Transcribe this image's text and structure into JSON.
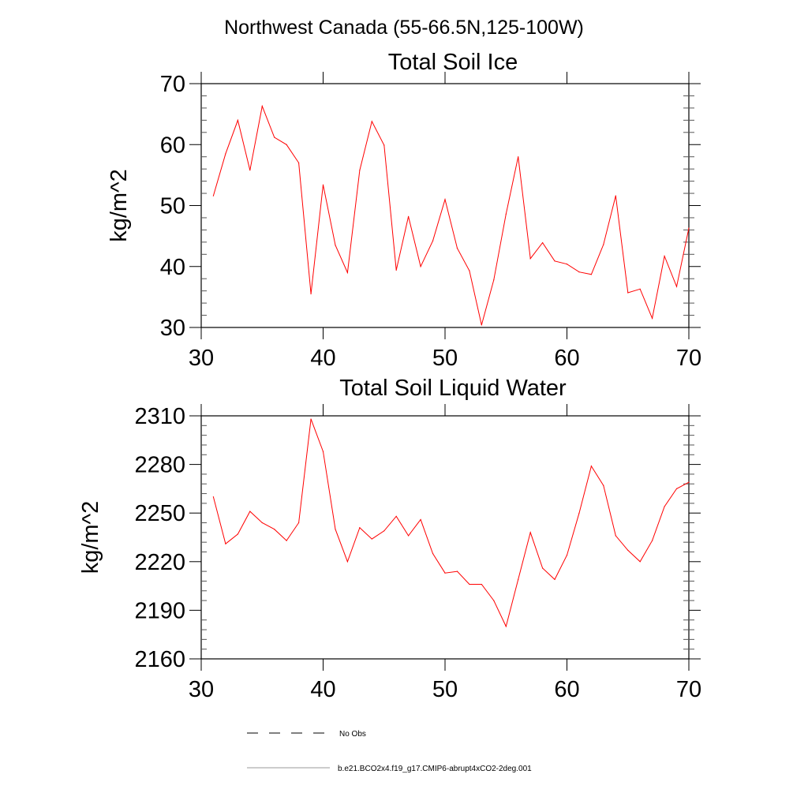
{
  "title": "Northwest Canada (55-66.5N,125-100W)",
  "legend": {
    "entries": [
      {
        "label": "No Obs",
        "style": "dashed",
        "color": "#000000"
      },
      {
        "label": "b.e21.BCO2x4.f19_g17.CMIP6-abrupt4xCO2-2deg.001",
        "style": "solid",
        "color": "#999999"
      }
    ]
  },
  "chart_data": [
    {
      "type": "line",
      "title": "Total Soil Ice",
      "xlabel": "",
      "ylabel": "kg/m^2",
      "xlim": [
        30,
        70
      ],
      "ylim": [
        30,
        70
      ],
      "xticks": [
        30,
        40,
        50,
        60,
        70
      ],
      "yticks": [
        30,
        40,
        50,
        60,
        70
      ],
      "grid": false,
      "series": [
        {
          "name": "b.e21.BCO2x4.f19_g17.CMIP6-abrupt4xCO2-2deg.001",
          "color": "#ff0000",
          "x": [
            31,
            32,
            33,
            34,
            35,
            36,
            37,
            38,
            39,
            40,
            41,
            42,
            43,
            44,
            45,
            46,
            47,
            48,
            49,
            50,
            51,
            52,
            53,
            54,
            55,
            56,
            57,
            58,
            59,
            60,
            61,
            62,
            63,
            64,
            65,
            66,
            67,
            68,
            69,
            70
          ],
          "values": [
            51.6,
            58.5,
            64.0,
            55.8,
            66.3,
            61.2,
            60.0,
            57.0,
            35.5,
            53.4,
            43.5,
            39.0,
            55.8,
            63.8,
            59.9,
            39.4,
            48.2,
            40.0,
            44.2,
            51.0,
            43.0,
            39.3,
            30.4,
            37.8,
            48.6,
            58.0,
            41.3,
            43.9,
            40.9,
            40.4,
            39.1,
            38.7,
            43.6,
            51.6,
            35.7,
            36.3,
            31.5,
            41.7,
            36.7,
            46.3
          ]
        }
      ]
    },
    {
      "type": "line",
      "title": "Total Soil Liquid Water",
      "xlabel": "",
      "ylabel": "kg/m^2",
      "xlim": [
        30,
        70
      ],
      "ylim": [
        2160,
        2310
      ],
      "xticks": [
        30,
        40,
        50,
        60,
        70
      ],
      "yticks": [
        2160,
        2190,
        2220,
        2250,
        2280,
        2310
      ],
      "grid": false,
      "series": [
        {
          "name": "b.e21.BCO2x4.f19_g17.CMIP6-abrupt4xCO2-2deg.001",
          "color": "#ff0000",
          "x": [
            31,
            32,
            33,
            34,
            35,
            36,
            37,
            38,
            39,
            40,
            41,
            42,
            43,
            44,
            45,
            46,
            47,
            48,
            49,
            50,
            51,
            52,
            53,
            54,
            55,
            56,
            57,
            58,
            59,
            60,
            61,
            62,
            63,
            64,
            65,
            66,
            67,
            68,
            69,
            70
          ],
          "values": [
            2260,
            2231,
            2237,
            2251,
            2244,
            2240,
            2233,
            2244,
            2308,
            2288,
            2240,
            2220,
            2241,
            2234,
            2239,
            2248,
            2236,
            2246,
            2225,
            2213,
            2214,
            2206,
            2206,
            2196,
            2180,
            2209,
            2238,
            2216,
            2209,
            2224,
            2250,
            2279,
            2267,
            2236,
            2227,
            2220,
            2233,
            2254,
            2265,
            2269
          ]
        }
      ]
    }
  ]
}
